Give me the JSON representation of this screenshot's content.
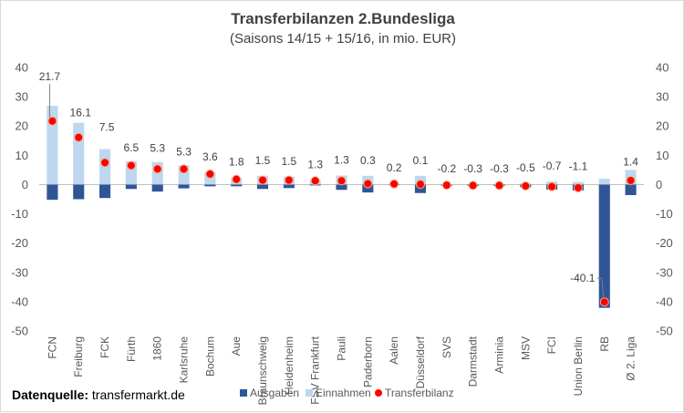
{
  "title": "Transferbilanzen 2.Bundesliga",
  "subtitle": "(Saisons 14/15 + 15/16, in mio. EUR)",
  "source_label": "Datenquelle:",
  "source_value": " transfermarkt.de",
  "colors": {
    "ausgaben": "#2f5597",
    "einnahmen": "#bdd7ee",
    "bilanz": "#ff0000",
    "bilanz_outline": "#f4b183",
    "axis_text": "#595959",
    "zero_line": "#bfbfbf"
  },
  "chart_data": {
    "type": "bar",
    "title": "Transferbilanzen 2.Bundesliga",
    "subtitle": "(Saisons 14/15 + 15/16, in mio. EUR)",
    "ylim": [
      -50,
      40
    ],
    "yticks": [
      40,
      30,
      20,
      10,
      0,
      -10,
      -20,
      -30,
      -40,
      -50
    ],
    "grid": false,
    "legend_position": "bottom",
    "categories": [
      "FCN",
      "Freiburg",
      "FCK",
      "Fürth",
      "1860",
      "Karlsruhe",
      "Bochum",
      "Aue",
      "Braunschweig",
      "Heidenheim",
      "FSV Frankfurt",
      "Pauli",
      "Paderborn",
      "Aalen",
      "Düsseldorf",
      "SVS",
      "Darmstadt",
      "Arminia",
      "MSV",
      "FCI",
      "Union Berlin",
      "RB",
      "Ø 2. Liga"
    ],
    "series": [
      {
        "name": "Ausgaben",
        "type": "bar",
        "values": [
          -5.2,
          -5.0,
          -4.6,
          -1.5,
          -2.4,
          -1.3,
          -0.6,
          -0.6,
          -1.5,
          -1.2,
          -0.3,
          -1.8,
          -2.7,
          -0.2,
          -2.9,
          -0.4,
          -0.5,
          -0.5,
          -0.9,
          -1.7,
          -2.0,
          -42.1,
          -3.6
        ]
      },
      {
        "name": "Einnahmen",
        "type": "bar",
        "values": [
          26.9,
          21.1,
          12.1,
          8.0,
          7.7,
          6.6,
          4.2,
          2.4,
          3.0,
          2.7,
          1.6,
          3.1,
          3.0,
          0.4,
          3.0,
          0.2,
          0.2,
          0.2,
          0.4,
          1.0,
          0.9,
          2.0,
          5.0
        ]
      },
      {
        "name": "Transferbilanz",
        "type": "scatter",
        "values": [
          21.7,
          16.1,
          7.5,
          6.5,
          5.3,
          5.3,
          3.6,
          1.8,
          1.5,
          1.5,
          1.3,
          1.3,
          0.3,
          0.2,
          0.1,
          -0.2,
          -0.3,
          -0.3,
          -0.5,
          -0.7,
          -1.1,
          -40.1,
          1.4
        ]
      }
    ],
    "data_labels": [
      "21.7",
      "16.1",
      "7.5",
      "6.5",
      "5.3",
      "5.3",
      "3.6",
      "1.8",
      "1.5",
      "1.5",
      "1.3",
      "1.3",
      "0.3",
      "0.2",
      "0.1",
      "-0.2",
      "-0.3",
      "-0.3",
      "-0.5",
      "-0.7",
      "-1.1",
      "-40.1",
      "1.4"
    ]
  }
}
